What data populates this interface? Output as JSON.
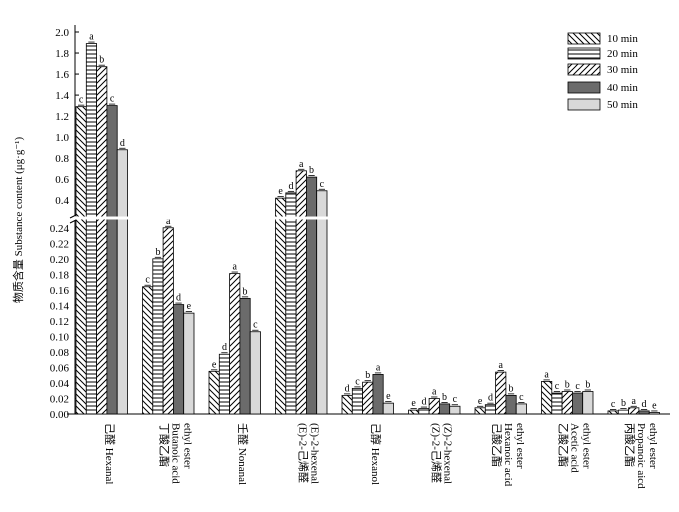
{
  "chart_data": {
    "type": "bar",
    "ylabel": "物质含量 Substance content (μg·g⁻¹)",
    "y_axis_break": true,
    "y_upper_range": [
      0.25,
      2.0
    ],
    "y_lower_range": [
      0,
      0.25
    ],
    "y_upper_ticks": [
      "2.0",
      "1.8",
      "1.6",
      "1.4",
      "1.2",
      "1.0",
      "0.8",
      "0.6",
      "0.4"
    ],
    "y_lower_ticks": [
      "0.24",
      "0.22",
      "0.20",
      "0.18",
      "0.16",
      "0.14",
      "0.12",
      "0.10",
      "0.08",
      "0.06",
      "0.04",
      "0.02",
      "0.00"
    ],
    "categories": [
      {
        "line1": "己醛 Hexanal",
        "line2": "",
        "line3": ""
      },
      {
        "line1": "丁酸乙酯",
        "line2": "Butanoic acid",
        "line3": "ethyl ester"
      },
      {
        "line1": "壬醛 Nonanal",
        "line2": "",
        "line3": ""
      },
      {
        "line1": "(E)-2-己烯醛",
        "line2": "(E)-2-hexenal",
        "line3": ""
      },
      {
        "line1": "己醇 Hexanol",
        "line2": "",
        "line3": ""
      },
      {
        "line1": "(Z)-2-己烯醛",
        "line2": "(Z)-2-hexenal",
        "line3": ""
      },
      {
        "line1": "己酸乙酯",
        "line2": "Hexanoic acid",
        "line3": "ethyl ester"
      },
      {
        "line1": "乙酸乙酯",
        "line2": "Acetic acid",
        "line3": "ethyl ester"
      },
      {
        "line1": "丙酸乙酯",
        "line2": "Propanoic aicd",
        "line3": "ethyl ester"
      }
    ],
    "legend_position": "top-right",
    "series": [
      {
        "name": "10 min",
        "pattern": "backslash",
        "values": [
          1.29,
          0.164,
          0.055,
          0.42,
          0.024,
          0.005,
          0.008,
          0.042,
          0.004
        ],
        "labels": [
          "c",
          "c",
          "e",
          "e",
          "d",
          "e",
          "e",
          "a",
          "c"
        ]
      },
      {
        "name": "20 min",
        "pattern": "horizontal",
        "values": [
          1.89,
          0.2,
          0.077,
          0.47,
          0.033,
          0.007,
          0.012,
          0.027,
          0.005
        ],
        "labels": [
          "a",
          "b",
          "d",
          "d",
          "c",
          "d",
          "d",
          "c",
          "b"
        ]
      },
      {
        "name": "30 min",
        "pattern": "forwardslash",
        "values": [
          1.67,
          0.24,
          0.181,
          0.68,
          0.041,
          0.02,
          0.054,
          0.029,
          0.008
        ],
        "labels": [
          "b",
          "a",
          "a",
          "a",
          "b",
          "a",
          "a",
          "b",
          "a"
        ]
      },
      {
        "name": "40 min",
        "pattern": "dark",
        "values": [
          1.3,
          0.141,
          0.149,
          0.62,
          0.051,
          0.013,
          0.024,
          0.027,
          0.004
        ],
        "labels": [
          "c",
          "d",
          "b",
          "b",
          "a",
          "b",
          "b",
          "c",
          "d"
        ]
      },
      {
        "name": "50 min",
        "pattern": "light",
        "values": [
          0.88,
          0.13,
          0.106,
          0.49,
          0.014,
          0.01,
          0.013,
          0.029,
          0.002
        ],
        "labels": [
          "d",
          "e",
          "c",
          "c",
          "e",
          "c",
          "c",
          "b",
          "e"
        ]
      }
    ]
  }
}
